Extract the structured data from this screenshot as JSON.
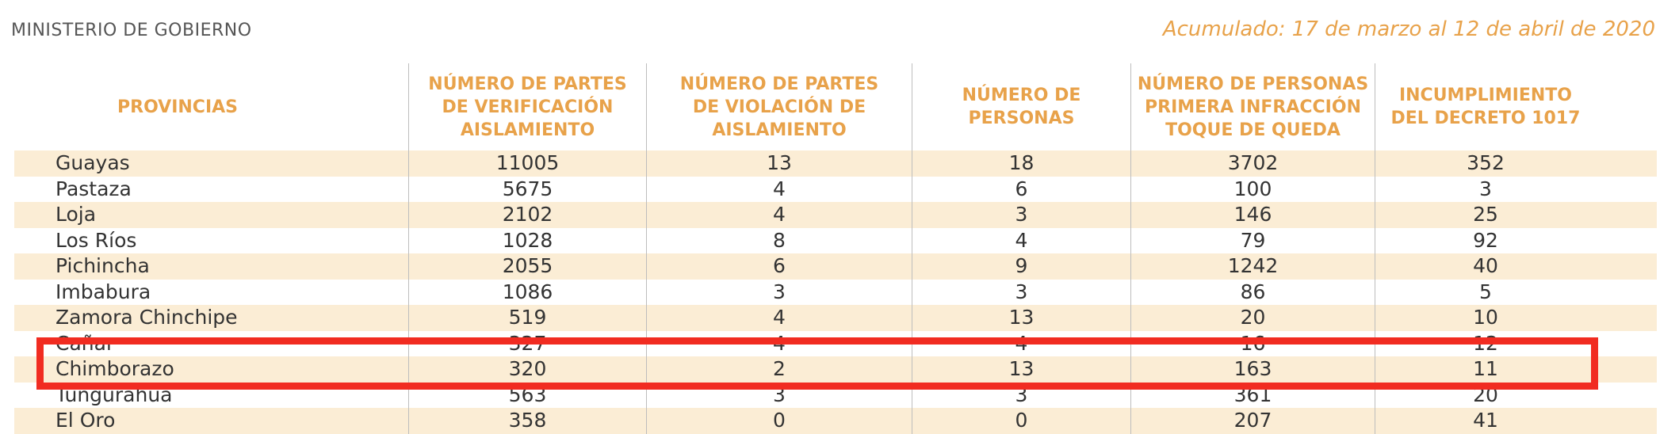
{
  "header": {
    "left": "MINISTERIO DE GOBIERNO",
    "right": "Acumulado: 17 de marzo al 12 de abril de 2020"
  },
  "table": {
    "headers": [
      [
        "PROVINCIAS"
      ],
      [
        "NÚMERO DE PARTES",
        "DE VERIFICACIÓN",
        "AISLAMIENTO"
      ],
      [
        "NÚMERO DE PARTES",
        "DE VIOLACIÓN DE",
        "AISLAMIENTO"
      ],
      [
        "NÚMERO DE",
        "PERSONAS"
      ],
      [
        "NÚMERO DE PERSONAS",
        "PRIMERA INFRACCIÓN",
        "TOQUE DE QUEDA"
      ],
      [
        "INCUMPLIMIENTO",
        "DEL DECRETO 1017"
      ]
    ],
    "rows": [
      [
        "Guayas",
        "11005",
        "13",
        "18",
        "3702",
        "352"
      ],
      [
        "Pastaza",
        "5675",
        "4",
        "6",
        "100",
        "3"
      ],
      [
        "Loja",
        "2102",
        "4",
        "3",
        "146",
        "25"
      ],
      [
        "Los Ríos",
        "1028",
        "8",
        "4",
        "79",
        "92"
      ],
      [
        "Pichincha",
        "2055",
        "6",
        "9",
        "1242",
        "40"
      ],
      [
        "Imbabura",
        "1086",
        "3",
        "3",
        "86",
        "5"
      ],
      [
        "Zamora Chinchipe",
        "519",
        "4",
        "13",
        "20",
        "10"
      ],
      [
        "Cañar",
        "327",
        "4",
        "4",
        "16",
        "12"
      ],
      [
        "Chimborazo",
        "320",
        "2",
        "13",
        "163",
        "11"
      ],
      [
        "Tungurahua",
        "563",
        "3",
        "3",
        "361",
        "20"
      ],
      [
        "El Oro",
        "358",
        "0",
        "0",
        "207",
        "41"
      ]
    ]
  },
  "colors": {
    "header_text": "#e8a24a",
    "row_shade": "#fbedd5",
    "highlight": "#f12c21"
  }
}
